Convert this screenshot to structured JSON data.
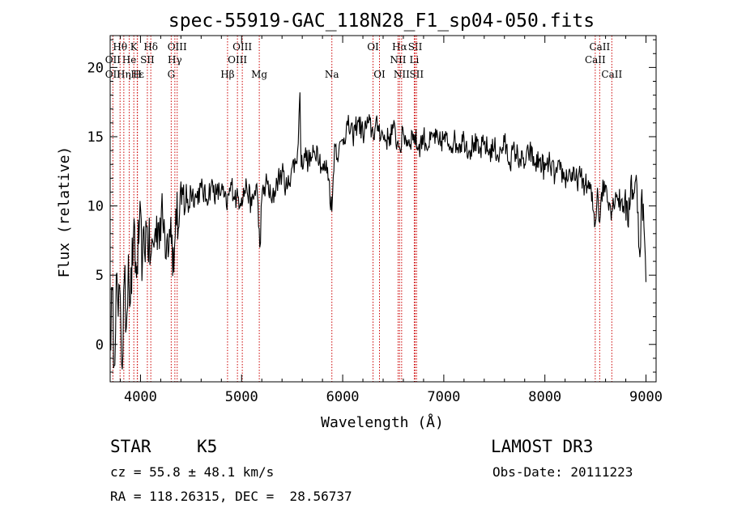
{
  "chart_data": {
    "type": "line",
    "title": "spec-55919-GAC_118N28_F1_sp04-050.fits",
    "xlabel": "Wavelength (Å)",
    "ylabel": "Flux (relative)",
    "xlim": [
      3700,
      9100
    ],
    "ylim": [
      -2.7,
      22.3
    ],
    "xticks": [
      4000,
      5000,
      6000,
      7000,
      8000,
      9000
    ],
    "yticks": [
      0,
      5,
      10,
      15,
      20
    ],
    "series": [
      {
        "name": "flux",
        "x": [
          3700,
          3720,
          3740,
          3760,
          3780,
          3800,
          3820,
          3840,
          3860,
          3880,
          3900,
          3930,
          3960,
          3990,
          4020,
          4060,
          4100,
          4140,
          4180,
          4220,
          4260,
          4300,
          4330,
          4350,
          4380,
          4420,
          4460,
          4500,
          4550,
          4600,
          4650,
          4700,
          4750,
          4800,
          4850,
          4900,
          4950,
          5000,
          5050,
          5100,
          5150,
          5180,
          5200,
          5250,
          5300,
          5350,
          5400,
          5450,
          5500,
          5540,
          5560,
          5577,
          5590,
          5620,
          5660,
          5700,
          5750,
          5800,
          5850,
          5893,
          5920,
          5960,
          6000,
          6050,
          6100,
          6150,
          6200,
          6250,
          6300,
          6350,
          6400,
          6450,
          6500,
          6540,
          6563,
          6600,
          6650,
          6700,
          6750,
          6800,
          6850,
          6900,
          6950,
          7000,
          7050,
          7100,
          7150,
          7200,
          7250,
          7300,
          7350,
          7400,
          7450,
          7500,
          7550,
          7600,
          7650,
          7700,
          7750,
          7800,
          7850,
          7900,
          7950,
          8000,
          8050,
          8100,
          8150,
          8200,
          8250,
          8300,
          8350,
          8400,
          8450,
          8498,
          8520,
          8542,
          8560,
          8600,
          8662,
          8700,
          8750,
          8790,
          8820,
          8850,
          8880,
          8910,
          8940,
          8960,
          8980,
          9000
        ],
        "y": [
          0.0,
          4.0,
          -1.5,
          5.0,
          2.0,
          3.5,
          -1.8,
          4.8,
          1.2,
          6.5,
          3.0,
          7.8,
          4.8,
          8.8,
          6.0,
          8.5,
          6.2,
          7.8,
          8.8,
          9.0,
          7.5,
          9.2,
          5.2,
          9.8,
          8.5,
          10.8,
          10.2,
          11.0,
          10.6,
          11.3,
          10.5,
          11.5,
          10.8,
          11.2,
          10.0,
          11.5,
          10.5,
          10.6,
          11.4,
          10.0,
          11.6,
          7.0,
          10.5,
          11.8,
          10.2,
          11.8,
          12.4,
          11.2,
          12.8,
          13.2,
          14.5,
          18.2,
          12.8,
          13.8,
          13.2,
          13.5,
          14.2,
          12.6,
          12.8,
          9.6,
          14.5,
          13.8,
          14.8,
          15.8,
          15.0,
          16.2,
          15.2,
          16.0,
          15.3,
          15.8,
          15.0,
          14.8,
          15.6,
          14.6,
          14.2,
          15.2,
          14.6,
          15.2,
          14.2,
          15.0,
          14.3,
          15.1,
          14.4,
          14.9,
          14.5,
          14.7,
          14.4,
          14.9,
          14.0,
          14.6,
          13.8,
          14.5,
          13.9,
          14.2,
          13.6,
          14.6,
          13.2,
          14.0,
          13.4,
          13.0,
          14.0,
          13.0,
          13.3,
          12.6,
          13.1,
          12.2,
          12.6,
          12.0,
          12.4,
          11.8,
          12.1,
          11.5,
          11.2,
          8.7,
          11.3,
          8.8,
          11.0,
          11.5,
          9.6,
          11.0,
          10.2,
          10.6,
          8.6,
          11.8,
          10.9,
          11.5,
          6.3,
          11.2,
          8.5,
          4.5
        ]
      }
    ],
    "lines_top": [
      {
        "label": "Hθ",
        "x": 3798,
        "row": 1
      },
      {
        "label": "K",
        "x": 3934,
        "row": 1
      },
      {
        "label": "Hδ",
        "x": 4102,
        "row": 1
      },
      {
        "label": "OIII",
        "x": 4363,
        "row": 1
      },
      {
        "label": "OIII",
        "x": 5007,
        "row": 1
      },
      {
        "label": "OI",
        "x": 6300,
        "row": 1
      },
      {
        "label": "Hα",
        "x": 6563,
        "row": 1
      },
      {
        "label": "SII",
        "x": 6717,
        "row": 1
      },
      {
        "label": "CaII",
        "x": 8542,
        "row": 1
      },
      {
        "label": "OII",
        "x": 3727,
        "row": 2
      },
      {
        "label": "He",
        "x": 3889,
        "row": 2
      },
      {
        "label": "SII",
        "x": 4068,
        "row": 2
      },
      {
        "label": "Hγ",
        "x": 4340,
        "row": 2
      },
      {
        "label": "OIII",
        "x": 4959,
        "row": 2
      },
      {
        "label": "NII",
        "x": 6548,
        "row": 2
      },
      {
        "label": "Li",
        "x": 6708,
        "row": 2
      },
      {
        "label": "CaII",
        "x": 8498,
        "row": 2
      }
    ],
    "lines_bottom": [
      {
        "label": "OII",
        "x": 3727
      },
      {
        "label": "Hε",
        "x": 3970
      },
      {
        "label": "Hη",
        "x": 3835
      },
      {
        "label": "H",
        "x": 3968
      },
      {
        "label": "G",
        "x": 4304
      },
      {
        "label": "Hβ",
        "x": 4861
      },
      {
        "label": "Mg",
        "x": 5175
      },
      {
        "label": "Na",
        "x": 5893
      },
      {
        "label": "OI",
        "x": 6364
      },
      {
        "label": "NII",
        "x": 6583
      },
      {
        "label": "SII",
        "x": 6731
      },
      {
        "label": "CaII",
        "x": 8662
      }
    ],
    "line_color": "#cc0000"
  },
  "info": {
    "class_label": "STAR",
    "subclass": "K5",
    "survey": "LAMOST DR3",
    "cz": "cz = 55.8 ± 48.1 km/s",
    "obs_date": "Obs-Date: 20111223",
    "coords": "RA = 118.26315, DEC =  28.56737"
  }
}
